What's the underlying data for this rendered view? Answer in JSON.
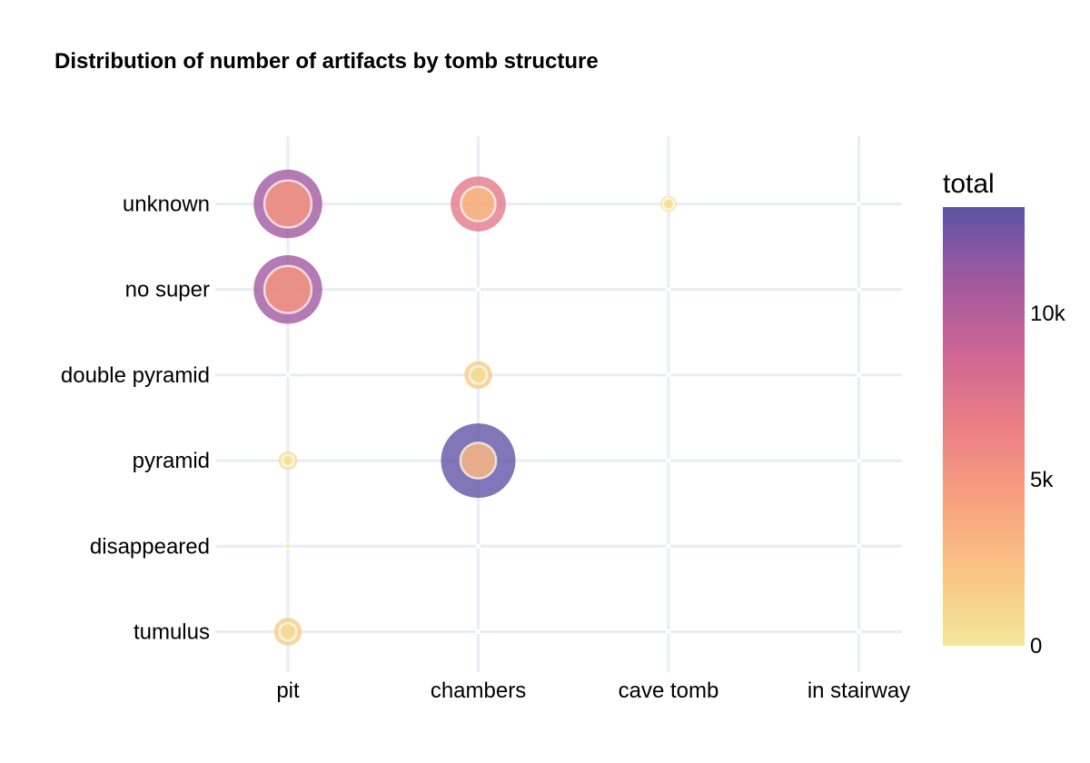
{
  "chart_data": {
    "type": "scatter",
    "title": "Distribution of number of artifacts by tomb structure",
    "xlabel": "",
    "ylabel": "",
    "x_categories": [
      "pit",
      "chambers",
      "cave tomb",
      "in stairway"
    ],
    "y_categories": [
      "unknown",
      "no super",
      "double pyramid",
      "pyramid",
      "disappeared",
      "tumulus"
    ],
    "points": [
      {
        "x": "pit",
        "y": "unknown",
        "total": 11000,
        "inner": 5200
      },
      {
        "x": "chambers",
        "y": "unknown",
        "total": 7100,
        "inner": 2800
      },
      {
        "x": "cave tomb",
        "y": "unknown",
        "total": 600,
        "inner": 300
      },
      {
        "x": "in stairway",
        "y": "unknown",
        "total": 0,
        "inner": 0
      },
      {
        "x": "pit",
        "y": "no super",
        "total": 11000,
        "inner": 5200
      },
      {
        "x": "chambers",
        "y": "no super",
        "total": 0,
        "inner": 0
      },
      {
        "x": "cave tomb",
        "y": "no super",
        "total": 0,
        "inner": 0
      },
      {
        "x": "in stairway",
        "y": "no super",
        "total": 0,
        "inner": 0
      },
      {
        "x": "pit",
        "y": "double pyramid",
        "total": 0,
        "inner": 0
      },
      {
        "x": "chambers",
        "y": "double pyramid",
        "total": 1800,
        "inner": 700
      },
      {
        "x": "cave tomb",
        "y": "double pyramid",
        "total": 0,
        "inner": 0
      },
      {
        "x": "in stairway",
        "y": "double pyramid",
        "total": 0,
        "inner": 0
      },
      {
        "x": "pit",
        "y": "pyramid",
        "total": 800,
        "inner": 300
      },
      {
        "x": "chambers",
        "y": "pyramid",
        "total": 13000,
        "inner": 3000
      },
      {
        "x": "cave tomb",
        "y": "pyramid",
        "total": 0,
        "inner": 0
      },
      {
        "x": "in stairway",
        "y": "pyramid",
        "total": 0,
        "inner": 0
      },
      {
        "x": "pit",
        "y": "disappeared",
        "total": 100,
        "inner": 50
      },
      {
        "x": "chambers",
        "y": "disappeared",
        "total": 0,
        "inner": 0
      },
      {
        "x": "cave tomb",
        "y": "disappeared",
        "total": 0,
        "inner": 0
      },
      {
        "x": "in stairway",
        "y": "disappeared",
        "total": 0,
        "inner": 0
      },
      {
        "x": "pit",
        "y": "tumulus",
        "total": 1800,
        "inner": 700
      },
      {
        "x": "chambers",
        "y": "tumulus",
        "total": 0,
        "inner": 0
      },
      {
        "x": "cave tomb",
        "y": "tumulus",
        "total": 0,
        "inner": 0
      },
      {
        "x": "in stairway",
        "y": "tumulus",
        "total": 0,
        "inner": 0
      }
    ],
    "colorbar": {
      "title": "total",
      "range": [
        0,
        13200
      ],
      "ticks": [
        {
          "value": 0,
          "label": "0"
        },
        {
          "value": 5000,
          "label": "5k"
        },
        {
          "value": 10000,
          "label": "10k"
        }
      ],
      "colors": [
        "#f3e79b",
        "#fac484",
        "#f8a07e",
        "#eb7f86",
        "#ce6693",
        "#a059a0",
        "#5c53a5"
      ]
    },
    "grid": true
  }
}
